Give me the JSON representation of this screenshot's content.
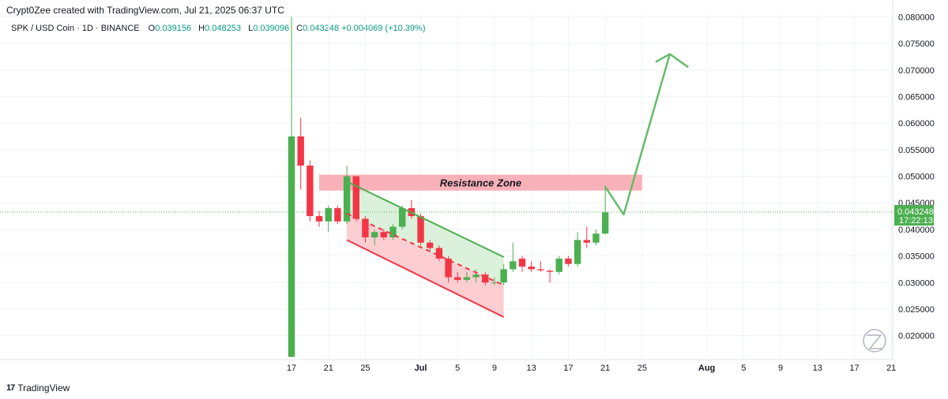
{
  "header": {
    "credit": "Crypt0Zee created with TradingView.com, Jul 21, 2025 06:37 UTC"
  },
  "legend": {
    "symbol": "SPK / USD Coin · 1D · BINANCE",
    "open_label": "O",
    "open": "0.039156",
    "high_label": "H",
    "high": "0.048253",
    "low_label": "L",
    "low": "0.039096",
    "close_label": "C",
    "close": "0.043248",
    "change": "+0.004069 (+10.39%)"
  },
  "brand": {
    "logo": "17",
    "name": "TradingView"
  },
  "colors": {
    "up": "#4caf50",
    "down": "#f23645",
    "zone": "#f7a9b0",
    "channel_up": "#d5efd5",
    "channel_down": "#fbc5ca"
  },
  "chart_data": {
    "type": "candlestick",
    "ylim": [
      0.0155,
      0.0805
    ],
    "y_ticks": [
      "0.080000",
      "0.075000",
      "0.070000",
      "0.065000",
      "0.060000",
      "0.055000",
      "0.050000",
      "0.045000",
      "0.040000",
      "0.035000",
      "0.030000",
      "0.025000",
      "0.020000"
    ],
    "y_tick_values": [
      0.08,
      0.075,
      0.07,
      0.065,
      0.06,
      0.055,
      0.05,
      0.045,
      0.04,
      0.035,
      0.03,
      0.025,
      0.02
    ],
    "x_ticks": [
      {
        "label": "17",
        "day": 0
      },
      {
        "label": "21",
        "day": 4
      },
      {
        "label": "25",
        "day": 8
      },
      {
        "label": "Jul",
        "day": 14
      },
      {
        "label": "5",
        "day": 18
      },
      {
        "label": "9",
        "day": 22
      },
      {
        "label": "13",
        "day": 26
      },
      {
        "label": "17",
        "day": 30
      },
      {
        "label": "21",
        "day": 34
      },
      {
        "label": "25",
        "day": 38
      },
      {
        "label": "Aug",
        "day": 45
      },
      {
        "label": "5",
        "day": 49
      },
      {
        "label": "9",
        "day": 53
      },
      {
        "label": "13",
        "day": 57
      },
      {
        "label": "17",
        "day": 61
      },
      {
        "label": "21",
        "day": 65
      }
    ],
    "candles": [
      {
        "date": "2025-06-17",
        "o": 0.016,
        "h": 0.08,
        "l": 0.016,
        "c": 0.0575
      },
      {
        "date": "2025-06-18",
        "o": 0.0575,
        "h": 0.061,
        "l": 0.0475,
        "c": 0.052
      },
      {
        "date": "2025-06-19",
        "o": 0.052,
        "h": 0.053,
        "l": 0.0415,
        "c": 0.0425
      },
      {
        "date": "2025-06-20",
        "o": 0.0425,
        "h": 0.0435,
        "l": 0.0405,
        "c": 0.0415
      },
      {
        "date": "2025-06-21",
        "o": 0.0415,
        "h": 0.0445,
        "l": 0.0395,
        "c": 0.044
      },
      {
        "date": "2025-06-22",
        "o": 0.044,
        "h": 0.0445,
        "l": 0.041,
        "c": 0.0415
      },
      {
        "date": "2025-06-23",
        "o": 0.0415,
        "h": 0.052,
        "l": 0.041,
        "c": 0.05
      },
      {
        "date": "2025-06-24",
        "o": 0.05,
        "h": 0.05,
        "l": 0.0415,
        "c": 0.042
      },
      {
        "date": "2025-06-25",
        "o": 0.042,
        "h": 0.0425,
        "l": 0.0375,
        "c": 0.0385
      },
      {
        "date": "2025-06-26",
        "o": 0.0385,
        "h": 0.04,
        "l": 0.037,
        "c": 0.0395
      },
      {
        "date": "2025-06-27",
        "o": 0.0395,
        "h": 0.04,
        "l": 0.038,
        "c": 0.0385
      },
      {
        "date": "2025-06-28",
        "o": 0.0385,
        "h": 0.041,
        "l": 0.038,
        "c": 0.0405
      },
      {
        "date": "2025-06-29",
        "o": 0.0405,
        "h": 0.0445,
        "l": 0.04,
        "c": 0.044
      },
      {
        "date": "2025-06-30",
        "o": 0.044,
        "h": 0.0455,
        "l": 0.042,
        "c": 0.0425
      },
      {
        "date": "2025-07-01",
        "o": 0.0425,
        "h": 0.043,
        "l": 0.037,
        "c": 0.0375
      },
      {
        "date": "2025-07-02",
        "o": 0.0375,
        "h": 0.038,
        "l": 0.036,
        "c": 0.0365
      },
      {
        "date": "2025-07-03",
        "o": 0.0365,
        "h": 0.037,
        "l": 0.034,
        "c": 0.0345
      },
      {
        "date": "2025-07-04",
        "o": 0.0345,
        "h": 0.035,
        "l": 0.03,
        "c": 0.031
      },
      {
        "date": "2025-07-05",
        "o": 0.031,
        "h": 0.032,
        "l": 0.03,
        "c": 0.0305
      },
      {
        "date": "2025-07-06",
        "o": 0.0305,
        "h": 0.032,
        "l": 0.03,
        "c": 0.031
      },
      {
        "date": "2025-07-07",
        "o": 0.031,
        "h": 0.0325,
        "l": 0.03,
        "c": 0.0315
      },
      {
        "date": "2025-07-08",
        "o": 0.0315,
        "h": 0.032,
        "l": 0.0295,
        "c": 0.03
      },
      {
        "date": "2025-07-09",
        "o": 0.03,
        "h": 0.031,
        "l": 0.0295,
        "c": 0.03
      },
      {
        "date": "2025-07-10",
        "o": 0.03,
        "h": 0.0335,
        "l": 0.0295,
        "c": 0.0325
      },
      {
        "date": "2025-07-11",
        "o": 0.0325,
        "h": 0.0375,
        "l": 0.032,
        "c": 0.034
      },
      {
        "date": "2025-07-12",
        "o": 0.0345,
        "h": 0.035,
        "l": 0.032,
        "c": 0.033
      },
      {
        "date": "2025-07-13",
        "o": 0.033,
        "h": 0.034,
        "l": 0.032,
        "c": 0.0325
      },
      {
        "date": "2025-07-14",
        "o": 0.0325,
        "h": 0.034,
        "l": 0.032,
        "c": 0.0323
      },
      {
        "date": "2025-07-15",
        "o": 0.0322,
        "h": 0.0325,
        "l": 0.03,
        "c": 0.032
      },
      {
        "date": "2025-07-16",
        "o": 0.032,
        "h": 0.035,
        "l": 0.0315,
        "c": 0.0345
      },
      {
        "date": "2025-07-17",
        "o": 0.0345,
        "h": 0.035,
        "l": 0.033,
        "c": 0.0335
      },
      {
        "date": "2025-07-18",
        "o": 0.0335,
        "h": 0.0395,
        "l": 0.033,
        "c": 0.038
      },
      {
        "date": "2025-07-19",
        "o": 0.038,
        "h": 0.0405,
        "l": 0.0365,
        "c": 0.0375
      },
      {
        "date": "2025-07-20",
        "o": 0.0375,
        "h": 0.04,
        "l": 0.037,
        "c": 0.0392
      },
      {
        "date": "2025-07-21",
        "o": 0.0392,
        "h": 0.0483,
        "l": 0.0391,
        "c": 0.0432
      }
    ],
    "annotations": {
      "resistance_zone": {
        "label": "Resistance Zone",
        "day_start": 3,
        "day_end": 38,
        "y_low": 0.0473,
        "y_high": 0.0503
      },
      "upper_channel": {
        "day_start": 6,
        "y_start": 0.049,
        "day_end": 23,
        "y_end": 0.0348
      },
      "lower_channel": {
        "day_start": 6,
        "y_start": 0.038,
        "day_end": 23,
        "y_end": 0.0235
      },
      "mid_dashed": {
        "day_start": 6,
        "y_start": 0.043,
        "day_end": 23,
        "y_end": 0.0295
      },
      "projection": [
        {
          "day": 34,
          "y": 0.048
        },
        {
          "day": 36,
          "y": 0.0428
        },
        {
          "day": 41,
          "y": 0.073
        },
        {
          "day": 43,
          "y": 0.0705
        }
      ]
    },
    "last_price": {
      "price": "0.043248",
      "countdown": "17:22:13",
      "value": 0.043248
    }
  }
}
